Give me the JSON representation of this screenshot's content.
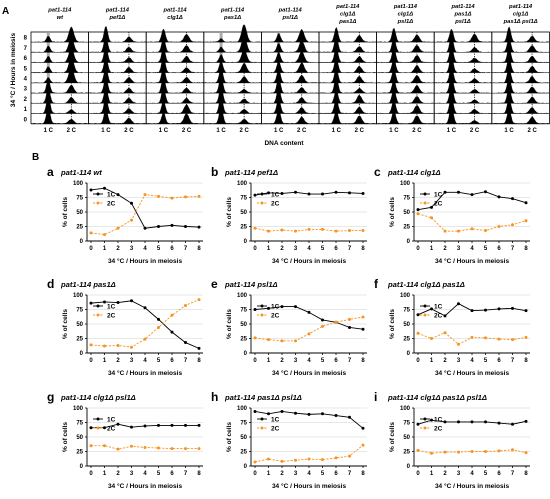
{
  "figure": {
    "panel_a_label": "A",
    "panel_b_label": "B",
    "a_ylabel": "34 °C / Hours in meiosis",
    "a_xlabel": "DNA content",
    "a_row_labels": [
      "0",
      "1",
      "2",
      "3",
      "4",
      "5",
      "6",
      "7",
      "8"
    ],
    "a_strain_headers": [
      [
        "pat1-114",
        "wt"
      ],
      [
        "pat1-114",
        "pef1Δ"
      ],
      [
        "pat1-114",
        "clg1Δ"
      ],
      [
        "pat1-114",
        "pas1Δ"
      ],
      [
        "pat1-114",
        "psl1Δ"
      ],
      [
        "pat1-114",
        "clg1Δ",
        "pas1Δ"
      ],
      [
        "pat1-114",
        "clg1Δ",
        "psl1Δ"
      ],
      [
        "pat1-114",
        "pas1Δ",
        "psl1Δ"
      ],
      [
        "pat1-114",
        "clg1Δ",
        "pas1Δ  psl1Δ"
      ]
    ],
    "a_peak_labels": [
      "1 C",
      "2 C"
    ],
    "a_colors": {
      "histogram": "#000000",
      "reference": "#9e9e9e"
    },
    "colors": {
      "1C": "#000000",
      "2C": "#f7931e"
    }
  },
  "chart_data": [
    {
      "type": "line",
      "letter": "a",
      "title": "pat1-114 wt",
      "xlabel": "34 °C / Hours in meiosis",
      "ylabel": "% of cells",
      "x": [
        0,
        1,
        2,
        3,
        4,
        5,
        6,
        7,
        8
      ],
      "ylim": [
        0,
        100
      ],
      "yticks": [
        0,
        25,
        50,
        75,
        100
      ],
      "legend": "upper-left",
      "series": [
        {
          "name": "1C",
          "values": [
            88,
            91,
            80,
            65,
            22,
            25,
            27,
            25,
            24
          ]
        },
        {
          "name": "2C",
          "values": [
            14,
            11,
            22,
            36,
            80,
            77,
            74,
            76,
            77
          ]
        }
      ]
    },
    {
      "type": "line",
      "letter": "b",
      "title": "pat1-114 pef1Δ",
      "xlabel": "34 °C / Hours in meiosis",
      "ylabel": "% of cells",
      "x": [
        0,
        1,
        2,
        3,
        4,
        5,
        6,
        7,
        8
      ],
      "ylim": [
        0,
        100
      ],
      "yticks": [
        0,
        25,
        50,
        75,
        100
      ],
      "legend": "upper-left",
      "series": [
        {
          "name": "1C",
          "values": [
            79,
            83,
            82,
            84,
            81,
            81,
            84,
            83,
            82
          ]
        },
        {
          "name": "2C",
          "values": [
            22,
            17,
            19,
            17,
            20,
            20,
            17,
            18,
            18
          ]
        }
      ]
    },
    {
      "type": "line",
      "letter": "c",
      "title": "pat1-114 clg1Δ",
      "xlabel": "34 °C / Hours in meiosis",
      "ylabel": "% of cells",
      "x": [
        0,
        1,
        2,
        3,
        4,
        5,
        6,
        7,
        8
      ],
      "ylim": [
        0,
        100
      ],
      "yticks": [
        0,
        25,
        50,
        75,
        100
      ],
      "legend": "upper-left",
      "series": [
        {
          "name": "1C",
          "values": [
            54,
            58,
            84,
            84,
            80,
            85,
            76,
            73,
            66
          ]
        },
        {
          "name": "2C",
          "values": [
            47,
            40,
            17,
            17,
            21,
            18,
            25,
            28,
            35
          ]
        }
      ]
    },
    {
      "type": "line",
      "letter": "d",
      "title": "pat1-114 pas1Δ",
      "xlabel": "34 °C / Hours in meiosis",
      "ylabel": "% of cells",
      "x": [
        0,
        1,
        2,
        3,
        4,
        5,
        6,
        7,
        8
      ],
      "ylim": [
        0,
        100
      ],
      "yticks": [
        0,
        25,
        50,
        75,
        100
      ],
      "legend": "upper-left",
      "series": [
        {
          "name": "1C",
          "values": [
            86,
            88,
            87,
            90,
            78,
            58,
            36,
            18,
            8
          ]
        },
        {
          "name": "2C",
          "values": [
            14,
            12,
            13,
            10,
            24,
            44,
            65,
            82,
            92
          ]
        }
      ]
    },
    {
      "type": "line",
      "letter": "e",
      "title": "pat1-114 psl1Δ",
      "xlabel": "34 °C / Hours in meiosis",
      "ylabel": "% of cells",
      "x": [
        0,
        1,
        2,
        3,
        4,
        5,
        6,
        7,
        8
      ],
      "ylim": [
        0,
        100
      ],
      "yticks": [
        0,
        25,
        50,
        75,
        100
      ],
      "legend": "upper-left",
      "series": [
        {
          "name": "1C",
          "values": [
            75,
            77,
            80,
            80,
            70,
            57,
            53,
            44,
            41
          ]
        },
        {
          "name": "2C",
          "values": [
            26,
            23,
            21,
            21,
            33,
            46,
            53,
            58,
            62
          ]
        }
      ]
    },
    {
      "type": "line",
      "letter": "f",
      "title": "pat1-114 clg1Δ pas1Δ",
      "xlabel": "34 °C / Hours in meiosis",
      "ylabel": "% of cells",
      "x": [
        0,
        1,
        2,
        3,
        4,
        5,
        6,
        7,
        8
      ],
      "ylim": [
        0,
        100
      ],
      "yticks": [
        0,
        25,
        50,
        75,
        100
      ],
      "legend": "upper-left",
      "series": [
        {
          "name": "1C",
          "values": [
            66,
            76,
            64,
            85,
            73,
            74,
            76,
            77,
            73
          ]
        },
        {
          "name": "2C",
          "values": [
            34,
            25,
            35,
            15,
            27,
            26,
            24,
            23,
            27
          ]
        }
      ]
    },
    {
      "type": "line",
      "letter": "g",
      "title": "pat1-114 clg1Δ psl1Δ",
      "xlabel": "34 °C / Hours in meiosis",
      "ylabel": "% of cells",
      "x": [
        0,
        1,
        2,
        3,
        4,
        5,
        6,
        7,
        8
      ],
      "ylim": [
        0,
        100
      ],
      "yticks": [
        0,
        25,
        50,
        75,
        100
      ],
      "legend": "upper-left",
      "series": [
        {
          "name": "1C",
          "values": [
            66,
            66,
            72,
            67,
            69,
            70,
            70,
            70,
            70
          ]
        },
        {
          "name": "2C",
          "values": [
            35,
            35,
            29,
            34,
            32,
            31,
            30,
            30,
            30
          ]
        }
      ]
    },
    {
      "type": "line",
      "letter": "h",
      "title": "pat1-114 pas1Δ psl1Δ",
      "xlabel": "34 °C / Hours in meiosis",
      "ylabel": "% of cells",
      "x": [
        0,
        1,
        2,
        3,
        4,
        5,
        6,
        7,
        8
      ],
      "ylim": [
        0,
        100
      ],
      "yticks": [
        0,
        25,
        50,
        75,
        100
      ],
      "legend": "upper-left",
      "series": [
        {
          "name": "1C",
          "values": [
            94,
            90,
            94,
            91,
            89,
            90,
            87,
            84,
            65
          ]
        },
        {
          "name": "2C",
          "values": [
            7,
            12,
            8,
            10,
            12,
            11,
            14,
            17,
            36
          ]
        }
      ]
    },
    {
      "type": "line",
      "letter": "i",
      "title": "pat1-114 clg1Δ pas1Δ psl1Δ",
      "xlabel": "34 °C / Hours in meiosis",
      "ylabel": "% of cells",
      "x": [
        0,
        1,
        2,
        3,
        4,
        5,
        6,
        7,
        8
      ],
      "ylim": [
        0,
        100
      ],
      "yticks": [
        0,
        25,
        50,
        75,
        100
      ],
      "legend": "upper-left",
      "series": [
        {
          "name": "1C",
          "values": [
            72,
            79,
            76,
            76,
            76,
            76,
            74,
            72,
            77
          ]
        },
        {
          "name": "2C",
          "values": [
            27,
            22,
            24,
            24,
            25,
            25,
            26,
            28,
            23
          ]
        }
      ]
    }
  ]
}
